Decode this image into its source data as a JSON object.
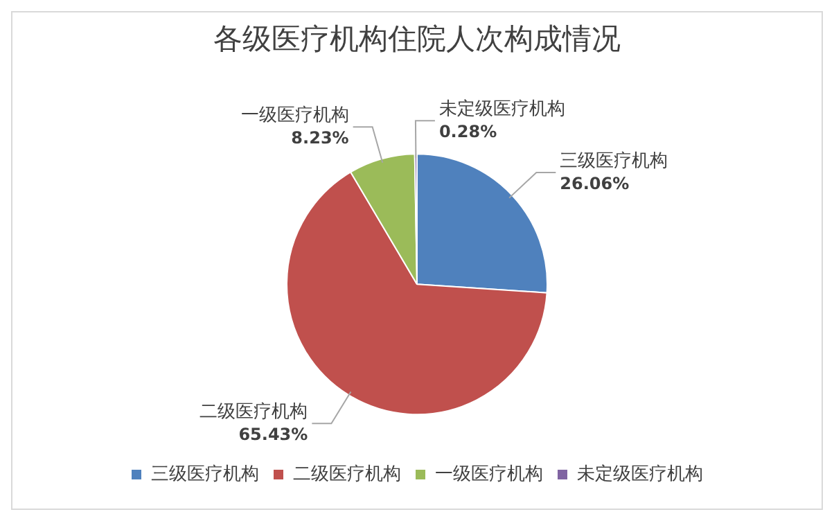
{
  "chart_data": {
    "type": "pie",
    "title": "各级医疗机构住院人次构成情况",
    "categories": [
      "三级医疗机构",
      "二级医疗机构",
      "一级医疗机构",
      "未定级医疗机构"
    ],
    "values": [
      26.06,
      65.43,
      8.23,
      0.28
    ],
    "colors": [
      "#4f81bd",
      "#c0504d",
      "#9bbb59",
      "#8064a2"
    ],
    "value_labels": [
      "26.06%",
      "65.43%",
      "8.23%",
      "0.28%"
    ],
    "legend": "bottom"
  }
}
